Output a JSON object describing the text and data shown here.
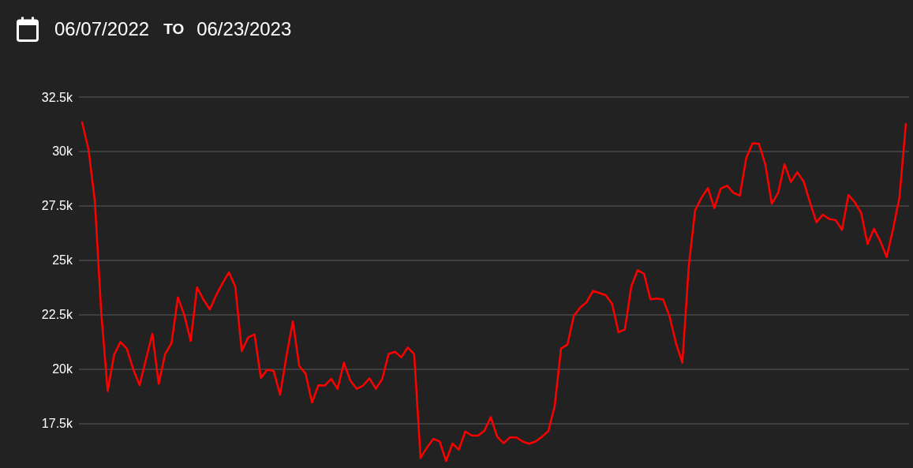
{
  "chart_data": {
    "type": "line",
    "annotations": [
      "06/07/2022",
      "TO",
      "06/23/2023"
    ],
    "categories": [
      null,
      null,
      null,
      null,
      null,
      null,
      null,
      null,
      null,
      null,
      null,
      null,
      null,
      null,
      null,
      null,
      null,
      null,
      null,
      null,
      null,
      null,
      null,
      null,
      null,
      null,
      null,
      null,
      null,
      null,
      null,
      null,
      null,
      null,
      null,
      null,
      null,
      null,
      null,
      null,
      null,
      null,
      null,
      null,
      null,
      null,
      null,
      null,
      null,
      null,
      null,
      null,
      null,
      null,
      null,
      null,
      null,
      null,
      null,
      null,
      null,
      null,
      null,
      null,
      null,
      null,
      null,
      null,
      null,
      null,
      null,
      null,
      null,
      null,
      null,
      null,
      null,
      null,
      null,
      null,
      null,
      null,
      null,
      null,
      null,
      null,
      null,
      null,
      null,
      null,
      null,
      null,
      null,
      null,
      null,
      null,
      null,
      null,
      null,
      null,
      null,
      null,
      null,
      null,
      null,
      null,
      null,
      null,
      null,
      null,
      null,
      null,
      null,
      null,
      null,
      null,
      null,
      null,
      null,
      null,
      null,
      null,
      null,
      null,
      null,
      null,
      null,
      null,
      null,
      null
    ],
    "values": [
      31340,
      30100,
      27700,
      22600,
      19000,
      20650,
      21250,
      20950,
      20000,
      19270,
      20450,
      21630,
      19330,
      20700,
      21200,
      23300,
      22500,
      21300,
      23760,
      23200,
      22750,
      23400,
      23960,
      24450,
      23780,
      20830,
      21460,
      21600,
      19600,
      19980,
      19920,
      18830,
      20600,
      22200,
      20150,
      19800,
      18470,
      19260,
      19250,
      19560,
      19100,
      20300,
      19480,
      19100,
      19250,
      19580,
      19100,
      19550,
      20700,
      20800,
      20550,
      21000,
      20700,
      15930,
      16400,
      16800,
      16680,
      15780,
      16590,
      16300,
      17140,
      16960,
      16950,
      17180,
      17800,
      16900,
      16600,
      16870,
      16870,
      16680,
      16580,
      16680,
      16900,
      17150,
      18300,
      20950,
      21130,
      22450,
      22830,
      23080,
      23600,
      23500,
      23400,
      23000,
      21700,
      21830,
      23800,
      24550,
      24380,
      23210,
      23250,
      23200,
      22420,
      21200,
      20300,
      24730,
      27300,
      27880,
      28320,
      27400,
      28290,
      28430,
      28100,
      27970,
      29700,
      30380,
      30350,
      29400,
      27600,
      28100,
      29420,
      28600,
      29050,
      28620,
      27650,
      26750,
      27100,
      26900,
      26850,
      26400,
      28000,
      27670,
      27180,
      25750,
      26450,
      25880,
      25150,
      26450,
      27900,
      31260
    ],
    "color": "#ff0000",
    "ylim": [
      15500,
      32500
    ],
    "yticks": [
      {
        "value": 17500,
        "label": "17.5k"
      },
      {
        "value": 20000,
        "label": "20k"
      },
      {
        "value": 22500,
        "label": "22.5k"
      },
      {
        "value": 25000,
        "label": "25k"
      },
      {
        "value": 27500,
        "label": "27.5k"
      },
      {
        "value": 30000,
        "label": "30k"
      },
      {
        "value": 32500,
        "label": "32.5k"
      }
    ],
    "grid": "y",
    "tick_labels": "y",
    "line_style": "solid"
  }
}
